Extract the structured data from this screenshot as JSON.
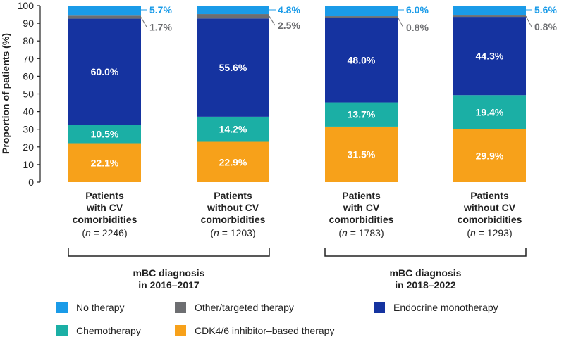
{
  "chart_data": {
    "type": "bar",
    "stacked": true,
    "ylabel": "Proportion of patients (%)",
    "ylim": [
      0,
      100
    ],
    "yticks": [
      "0",
      "10",
      "20",
      "30",
      "40",
      "50",
      "60",
      "70",
      "80",
      "90",
      "100"
    ],
    "categories": [
      {
        "label_lines": [
          "Patients",
          "with CV",
          "comorbidities"
        ],
        "n_prefix": "(",
        "n_italic": "n",
        "n_suffix": " = 2246)"
      },
      {
        "label_lines": [
          "Patients",
          "without CV",
          "comorbidities"
        ],
        "n_prefix": "(",
        "n_italic": "n",
        "n_suffix": " = 1203)"
      },
      {
        "label_lines": [
          "Patients",
          "with CV",
          "comorbidities"
        ],
        "n_prefix": "(",
        "n_italic": "n",
        "n_suffix": " = 1783)"
      },
      {
        "label_lines": [
          "Patients",
          "without CV",
          "comorbidities"
        ],
        "n_prefix": "(",
        "n_italic": "n",
        "n_suffix": " = 1293)"
      }
    ],
    "series": [
      {
        "key": "cdk",
        "name": "CDK4/6 inhibitor–based therapy",
        "color": "#F7A11A",
        "values": [
          22.1,
          22.9,
          31.5,
          29.9
        ],
        "labels": [
          "22.1%",
          "22.9%",
          "31.5%",
          "29.9%"
        ]
      },
      {
        "key": "chemo",
        "name": "Chemotherapy",
        "color": "#1BAFA5",
        "values": [
          10.5,
          14.2,
          13.7,
          19.4
        ],
        "labels": [
          "10.5%",
          "14.2%",
          "13.7%",
          "19.4%"
        ]
      },
      {
        "key": "endo",
        "name": "Endocrine monotherapy",
        "color": "#1533A0",
        "values": [
          60.0,
          55.6,
          48.0,
          44.3
        ],
        "labels": [
          "60.0%",
          "55.6%",
          "48.0%",
          "44.3%"
        ]
      },
      {
        "key": "other",
        "name": "Other/targeted therapy",
        "color": "#6D6E71",
        "values": [
          1.7,
          2.5,
          0.8,
          0.8
        ],
        "labels": [
          "1.7%",
          "2.5%",
          "0.8%",
          "0.8%"
        ]
      },
      {
        "key": "none",
        "name": "No therapy",
        "color": "#1A9BE8",
        "values": [
          5.7,
          4.8,
          6.0,
          5.6
        ],
        "labels": [
          "5.7%",
          "4.8%",
          "6.0%",
          "5.6%"
        ]
      }
    ],
    "groups": [
      {
        "lines": [
          "mBC diagnosis",
          "in 2016–2017"
        ]
      },
      {
        "lines": [
          "mBC diagnosis",
          "in 2018–2022"
        ]
      }
    ],
    "legend_order": [
      "none",
      "other",
      "endo",
      "chemo",
      "cdk"
    ]
  }
}
